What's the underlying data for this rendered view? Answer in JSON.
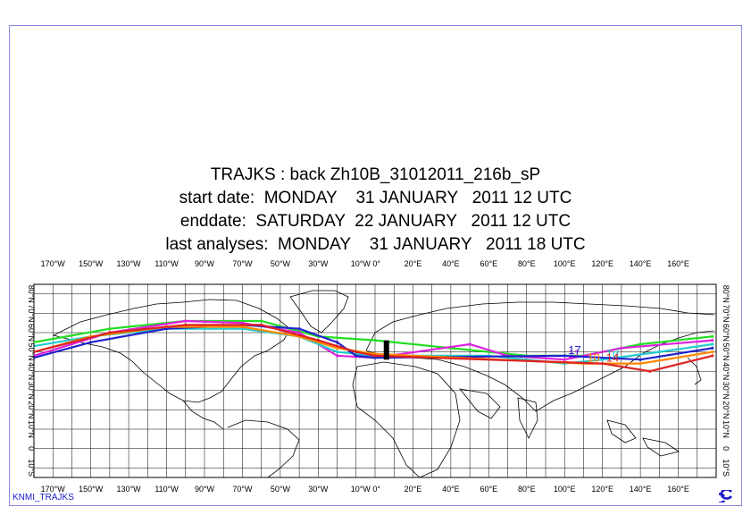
{
  "titles": {
    "line1": "TRAJKS : back Zh10B_31012011_216b_sP",
    "line2": "start date:  MONDAY    31 JANUARY   2011 12 UTC",
    "line3": "enddate:  SATURDAY  22 JANUARY   2011 12 UTC",
    "line4": "last analyses:  MONDAY    31 JANUARY   2011 18 UTC"
  },
  "footer": {
    "program": "KNMI_TRAJKS"
  },
  "axes": {
    "lon_labels": [
      "170°W",
      "150°W",
      "130°W",
      "110°W",
      "90°W",
      "70°W",
      "50°W",
      "30°W",
      "10°W 0°",
      "20°E",
      "40°E",
      "60°E",
      "80°E",
      "100°E",
      "120°E",
      "140°E",
      "160°E"
    ],
    "lon_values": [
      -170,
      -150,
      -130,
      -110,
      -90,
      -70,
      -50,
      -30,
      -5,
      20,
      40,
      60,
      80,
      100,
      120,
      140,
      160
    ],
    "lat_labels": [
      "80°N",
      "70°N",
      "60°N",
      "50°N",
      "40°N",
      "30°N",
      "20°N",
      "10°N",
      "0",
      "10°S"
    ],
    "lat_values": [
      80,
      70,
      60,
      50,
      40,
      30,
      20,
      10,
      0,
      -10
    ]
  },
  "trajectories": [
    {
      "id": "t-green",
      "color": "#22dd22",
      "label": "",
      "points": [
        [
          -180,
          55
        ],
        [
          -140,
          62
        ],
        [
          -100,
          66
        ],
        [
          -60,
          66
        ],
        [
          -30,
          58
        ],
        [
          0,
          56
        ],
        [
          40,
          52
        ],
        [
          80,
          48
        ],
        [
          110,
          48
        ],
        [
          140,
          54
        ],
        [
          178,
          58
        ]
      ]
    },
    {
      "id": "t-magenta",
      "color": "#dd22dd",
      "label": "11",
      "points": [
        [
          -180,
          48
        ],
        [
          -140,
          60
        ],
        [
          -100,
          66
        ],
        [
          -70,
          65
        ],
        [
          -40,
          60
        ],
        [
          -20,
          48
        ],
        [
          0,
          47
        ],
        [
          50,
          54
        ],
        [
          70,
          48
        ],
        [
          100,
          46
        ],
        [
          130,
          52
        ],
        [
          178,
          56
        ]
      ]
    },
    {
      "id": "t-cyan",
      "color": "#22cccc",
      "label": "1d",
      "points": [
        [
          -180,
          53
        ],
        [
          -150,
          58
        ],
        [
          -110,
          62
        ],
        [
          -70,
          62
        ],
        [
          -40,
          58
        ],
        [
          -20,
          50
        ],
        [
          0,
          48
        ],
        [
          60,
          48
        ],
        [
          100,
          44
        ],
        [
          120,
          46
        ],
        [
          150,
          50
        ],
        [
          178,
          54
        ]
      ]
    },
    {
      "id": "t-blue",
      "color": "#2222cc",
      "label": "17",
      "points": [
        [
          -180,
          47
        ],
        [
          -150,
          55
        ],
        [
          -110,
          62
        ],
        [
          -70,
          64
        ],
        [
          -40,
          62
        ],
        [
          -20,
          55
        ],
        [
          -10,
          48
        ],
        [
          0,
          47
        ],
        [
          100,
          48
        ],
        [
          140,
          46
        ],
        [
          178,
          52
        ]
      ]
    },
    {
      "id": "t-orange",
      "color": "#ff8800",
      "label": "10",
      "points": [
        [
          -180,
          50
        ],
        [
          -150,
          58
        ],
        [
          -110,
          63
        ],
        [
          -70,
          63
        ],
        [
          -40,
          58
        ],
        [
          -20,
          52
        ],
        [
          0,
          49
        ],
        [
          110,
          44
        ],
        [
          140,
          44
        ],
        [
          178,
          50
        ]
      ]
    },
    {
      "id": "t-red",
      "color": "#dd2222",
      "label": "14",
      "points": [
        [
          -180,
          50
        ],
        [
          -140,
          60
        ],
        [
          -100,
          64
        ],
        [
          -60,
          64
        ],
        [
          -30,
          56
        ],
        [
          -10,
          50
        ],
        [
          0,
          48
        ],
        [
          120,
          44
        ],
        [
          145,
          40
        ],
        [
          178,
          48
        ]
      ]
    }
  ]
}
